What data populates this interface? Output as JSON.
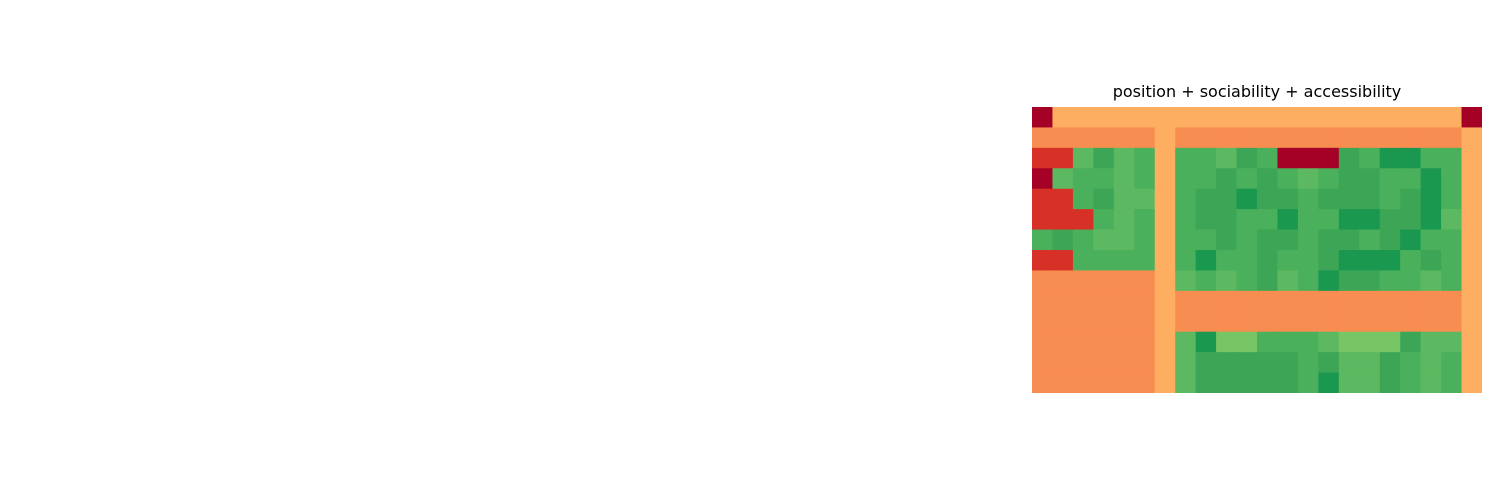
{
  "chart_data": [
    {
      "type": "heatmap",
      "title": "position + sociability + accessibility",
      "grid": false,
      "axes_visible": false,
      "colormap": "RdYlGn",
      "palette": {
        "crimson": "#a50026",
        "red": "#d73027",
        "red_orange": "#e8553a",
        "orange": "#f46d43",
        "light_orange": "#f88d52",
        "pale_orange": "#fdae61",
        "light_green": "#78c565",
        "green": "#5db961",
        "mid_green": "#4bb05c",
        "deep_green": "#3da656",
        "dark_green": "#1a9850"
      },
      "matrix": [
        [
          -1.0,
          -0.5,
          -0.5,
          -0.5,
          -0.5,
          -0.5,
          -0.5,
          -0.5,
          -0.5,
          -0.5,
          -0.5,
          -0.5,
          -0.5,
          -0.5,
          -0.5,
          -0.5,
          -0.5,
          -0.5,
          -0.5,
          -0.5,
          -0.5,
          -1.0
        ],
        [
          -0.6,
          -0.6,
          -0.6,
          -0.6,
          -0.6,
          -0.6,
          -0.5,
          -0.6,
          -0.6,
          -0.6,
          -0.6,
          -0.6,
          -0.6,
          -0.6,
          -0.6,
          -0.6,
          -0.6,
          -0.6,
          -0.6,
          -0.6,
          -0.6,
          -0.5
        ],
        [
          -0.7,
          -0.7,
          -0.7,
          -0.7,
          -0.7,
          -0.7,
          -0.5,
          0.7,
          0.7,
          0.7,
          0.7,
          0.7,
          0.7,
          0.7,
          0.7,
          0.7,
          0.7,
          0.7,
          0.7,
          0.7,
          0.7,
          -0.5
        ],
        [
          -0.7,
          -0.7,
          -0.7,
          -0.7,
          -0.7,
          -0.7,
          -0.5,
          0.7,
          0.7,
          0.7,
          0.7,
          0.7,
          0.7,
          0.7,
          0.7,
          0.7,
          0.7,
          0.7,
          0.7,
          0.7,
          0.7,
          -0.5
        ],
        [
          -0.7,
          -0.7,
          -0.7,
          -0.7,
          -0.7,
          -0.7,
          -0.5,
          0.7,
          0.7,
          0.7,
          0.7,
          0.7,
          0.7,
          0.7,
          0.7,
          0.7,
          0.7,
          0.7,
          0.7,
          0.7,
          0.7,
          -0.5
        ],
        [
          -0.7,
          -0.7,
          -0.7,
          -0.7,
          -0.7,
          -0.7,
          -0.5,
          0.7,
          0.7,
          0.7,
          0.7,
          0.7,
          0.7,
          0.7,
          0.7,
          0.7,
          0.7,
          0.7,
          0.7,
          0.7,
          0.7,
          -0.5
        ],
        [
          -0.7,
          -0.7,
          -0.7,
          -0.7,
          -0.7,
          -0.7,
          -0.5,
          0.7,
          0.7,
          0.7,
          0.7,
          0.7,
          0.7,
          0.7,
          0.7,
          0.7,
          0.7,
          0.7,
          0.7,
          0.7,
          0.7,
          -0.5
        ],
        [
          -0.7,
          -0.7,
          -0.7,
          -0.7,
          -0.7,
          -0.7,
          -0.5,
          0.7,
          0.7,
          0.7,
          0.7,
          0.7,
          0.7,
          0.7,
          0.7,
          0.7,
          0.7,
          0.7,
          0.7,
          0.7,
          0.7,
          -0.5
        ],
        [
          -0.7,
          -0.7,
          -0.7,
          -0.7,
          -0.7,
          -0.7,
          -0.5,
          0.7,
          0.7,
          0.7,
          0.7,
          0.7,
          0.7,
          0.7,
          0.7,
          0.7,
          0.7,
          0.7,
          0.7,
          0.7,
          0.7,
          -0.5
        ],
        [
          -0.6,
          -0.6,
          -0.6,
          -0.6,
          -0.6,
          -0.6,
          -0.5,
          -0.6,
          -0.6,
          -0.6,
          -0.6,
          -0.6,
          -0.6,
          -0.6,
          -0.6,
          -0.6,
          -0.6,
          -0.6,
          -0.6,
          -0.6,
          -0.6,
          -0.5
        ],
        [
          -0.6,
          -0.6,
          -0.6,
          -0.6,
          -0.6,
          -0.6,
          -0.5,
          -0.6,
          -0.6,
          -0.6,
          -0.6,
          -0.6,
          -0.6,
          -0.6,
          -0.6,
          -0.6,
          -0.6,
          -0.6,
          -0.6,
          -0.6,
          -0.6,
          -0.5
        ],
        [
          -0.6,
          -0.6,
          -0.6,
          -0.6,
          -0.6,
          -0.6,
          -0.5,
          0.7,
          0.7,
          0.7,
          0.7,
          0.7,
          0.7,
          0.7,
          0.7,
          0.7,
          0.7,
          0.7,
          0.7,
          0.7,
          0.7,
          -0.5
        ],
        [
          -0.6,
          -0.6,
          -0.6,
          -0.6,
          -0.6,
          -0.6,
          -0.5,
          0.7,
          0.7,
          0.7,
          0.7,
          0.7,
          0.7,
          0.7,
          0.7,
          0.7,
          0.7,
          0.7,
          0.7,
          0.7,
          0.7,
          -0.5
        ],
        [
          -0.6,
          -0.6,
          -0.6,
          -0.6,
          -0.6,
          -0.6,
          -0.5,
          0.7,
          0.7,
          0.7,
          0.7,
          0.7,
          0.7,
          0.7,
          0.7,
          0.7,
          0.7,
          0.7,
          0.7,
          0.7,
          0.7,
          -0.5
        ]
      ],
      "cells": [
        [
          "crimson",
          "pale_orange",
          "pale_orange",
          "pale_orange",
          "pale_orange",
          "pale_orange",
          "pale_orange",
          "pale_orange",
          "pale_orange",
          "pale_orange",
          "pale_orange",
          "pale_orange",
          "pale_orange",
          "pale_orange",
          "pale_orange",
          "pale_orange",
          "pale_orange",
          "pale_orange",
          "pale_orange",
          "pale_orange",
          "pale_orange",
          "crimson"
        ],
        [
          "light_orange",
          "light_orange",
          "light_orange",
          "light_orange",
          "light_orange",
          "light_orange",
          "pale_orange",
          "light_orange",
          "light_orange",
          "light_orange",
          "light_orange",
          "light_orange",
          "light_orange",
          "light_orange",
          "light_orange",
          "light_orange",
          "light_orange",
          "light_orange",
          "light_orange",
          "light_orange",
          "light_orange",
          "pale_orange"
        ],
        [
          "red",
          "red",
          "green",
          "deep_green",
          "green",
          "mid_green",
          "pale_orange",
          "mid_green",
          "mid_green",
          "green",
          "deep_green",
          "mid_green",
          "crimson",
          "crimson",
          "crimson",
          "deep_green",
          "mid_green",
          "dark_green",
          "dark_green",
          "mid_green",
          "mid_green",
          "pale_orange"
        ],
        [
          "crimson",
          "green",
          "mid_green",
          "mid_green",
          "green",
          "mid_green",
          "pale_orange",
          "mid_green",
          "mid_green",
          "deep_green",
          "mid_green",
          "deep_green",
          "mid_green",
          "green",
          "mid_green",
          "deep_green",
          "deep_green",
          "mid_green",
          "mid_green",
          "dark_green",
          "mid_green",
          "pale_orange"
        ],
        [
          "red",
          "red",
          "mid_green",
          "deep_green",
          "green",
          "green",
          "pale_orange",
          "mid_green",
          "deep_green",
          "deep_green",
          "dark_green",
          "deep_green",
          "deep_green",
          "mid_green",
          "deep_green",
          "deep_green",
          "deep_green",
          "mid_green",
          "deep_green",
          "dark_green",
          "mid_green",
          "pale_orange"
        ],
        [
          "red",
          "red",
          "red",
          "mid_green",
          "green",
          "mid_green",
          "pale_orange",
          "mid_green",
          "deep_green",
          "deep_green",
          "mid_green",
          "mid_green",
          "dark_green",
          "mid_green",
          "mid_green",
          "dark_green",
          "dark_green",
          "deep_green",
          "deep_green",
          "dark_green",
          "green",
          "pale_orange"
        ],
        [
          "mid_green",
          "deep_green",
          "mid_green",
          "green",
          "green",
          "mid_green",
          "pale_orange",
          "mid_green",
          "mid_green",
          "deep_green",
          "mid_green",
          "deep_green",
          "deep_green",
          "mid_green",
          "deep_green",
          "deep_green",
          "mid_green",
          "deep_green",
          "dark_green",
          "mid_green",
          "mid_green",
          "pale_orange"
        ],
        [
          "red",
          "red",
          "mid_green",
          "mid_green",
          "mid_green",
          "mid_green",
          "pale_orange",
          "mid_green",
          "dark_green",
          "mid_green",
          "mid_green",
          "deep_green",
          "mid_green",
          "mid_green",
          "deep_green",
          "dark_green",
          "dark_green",
          "dark_green",
          "mid_green",
          "deep_green",
          "mid_green",
          "pale_orange"
        ],
        [
          "light_orange",
          "light_orange",
          "light_orange",
          "light_orange",
          "light_orange",
          "light_orange",
          "pale_orange",
          "green",
          "mid_green",
          "green",
          "mid_green",
          "deep_green",
          "green",
          "mid_green",
          "dark_green",
          "deep_green",
          "deep_green",
          "mid_green",
          "mid_green",
          "green",
          "mid_green",
          "pale_orange"
        ],
        [
          "light_orange",
          "light_orange",
          "light_orange",
          "light_orange",
          "light_orange",
          "light_orange",
          "pale_orange",
          "light_orange",
          "light_orange",
          "light_orange",
          "light_orange",
          "light_orange",
          "light_orange",
          "light_orange",
          "light_orange",
          "light_orange",
          "light_orange",
          "light_orange",
          "light_orange",
          "light_orange",
          "light_orange",
          "pale_orange"
        ],
        [
          "light_orange",
          "light_orange",
          "light_orange",
          "light_orange",
          "light_orange",
          "light_orange",
          "pale_orange",
          "light_orange",
          "light_orange",
          "light_orange",
          "light_orange",
          "light_orange",
          "light_orange",
          "light_orange",
          "light_orange",
          "light_orange",
          "light_orange",
          "light_orange",
          "light_orange",
          "light_orange",
          "light_orange",
          "pale_orange"
        ],
        [
          "light_orange",
          "light_orange",
          "light_orange",
          "light_orange",
          "light_orange",
          "light_orange",
          "pale_orange",
          "green",
          "dark_green",
          "light_green",
          "light_green",
          "mid_green",
          "mid_green",
          "mid_green",
          "green",
          "light_green",
          "light_green",
          "light_green",
          "deep_green",
          "green",
          "green",
          "pale_orange"
        ],
        [
          "light_orange",
          "light_orange",
          "light_orange",
          "light_orange",
          "light_orange",
          "light_orange",
          "pale_orange",
          "green",
          "deep_green",
          "deep_green",
          "deep_green",
          "deep_green",
          "deep_green",
          "mid_green",
          "deep_green",
          "green",
          "green",
          "deep_green",
          "mid_green",
          "green",
          "mid_green",
          "pale_orange"
        ],
        [
          "light_orange",
          "light_orange",
          "light_orange",
          "light_orange",
          "light_orange",
          "light_orange",
          "pale_orange",
          "green",
          "deep_green",
          "deep_green",
          "deep_green",
          "deep_green",
          "deep_green",
          "mid_green",
          "dark_green",
          "green",
          "green",
          "deep_green",
          "mid_green",
          "green",
          "mid_green",
          "pale_orange"
        ]
      ]
    }
  ]
}
